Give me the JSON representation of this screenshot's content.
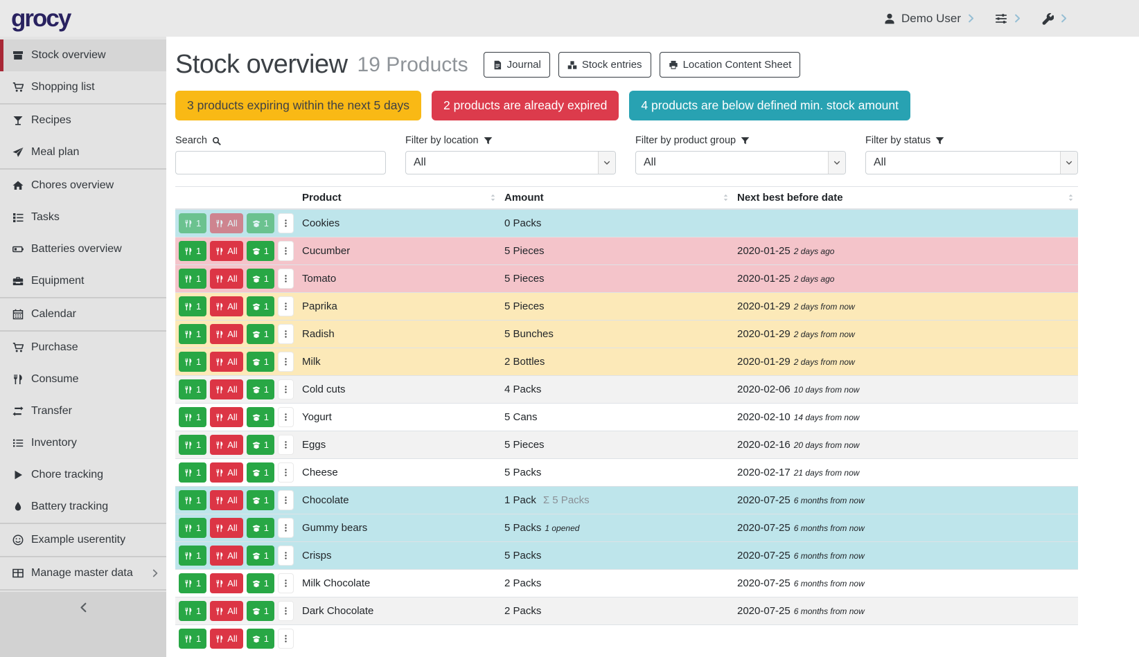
{
  "topbar": {
    "logo": "grocy",
    "user_label": "Demo User"
  },
  "sidebar": {
    "items": [
      {
        "label": "Stock overview",
        "icon": "box",
        "active": true
      },
      {
        "label": "Shopping list",
        "icon": "cart",
        "divider_after": true
      },
      {
        "label": "Recipes",
        "icon": "cocktail"
      },
      {
        "label": "Meal plan",
        "icon": "paper-plane",
        "divider_after": true
      },
      {
        "label": "Chores overview",
        "icon": "home"
      },
      {
        "label": "Tasks",
        "icon": "tasks"
      },
      {
        "label": "Batteries overview",
        "icon": "battery"
      },
      {
        "label": "Equipment",
        "icon": "toolbox",
        "divider_after": true
      },
      {
        "label": "Calendar",
        "icon": "calendar",
        "divider_after": true
      },
      {
        "label": "Purchase",
        "icon": "cart"
      },
      {
        "label": "Consume",
        "icon": "utensils"
      },
      {
        "label": "Transfer",
        "icon": "exchange"
      },
      {
        "label": "Inventory",
        "icon": "list"
      },
      {
        "label": "Chore tracking",
        "icon": "play"
      },
      {
        "label": "Battery tracking",
        "icon": "tint",
        "divider_after": true
      },
      {
        "label": "Example userentity",
        "icon": "smile",
        "divider_after": true
      },
      {
        "label": "Manage master data",
        "icon": "table",
        "divider_after": true,
        "has_chevron": true
      }
    ]
  },
  "page": {
    "title": "Stock overview",
    "subtitle": "19 Products",
    "buttons": [
      {
        "label": "Journal",
        "icon": "journal"
      },
      {
        "label": "Stock entries",
        "icon": "boxes"
      },
      {
        "label": "Location Content Sheet",
        "icon": "print"
      }
    ],
    "alerts": [
      {
        "text": "3 products expiring within the next 5 days",
        "bg": "#f9b915",
        "fg": "#3f4145"
      },
      {
        "text": "2 products are already expired",
        "bg": "#dc3b4c",
        "fg": "#ffffff"
      },
      {
        "text": "4 products are below defined min. stock amount",
        "bg": "#28a2b2",
        "fg": "#ffffff"
      }
    ]
  },
  "filters": {
    "search_label": "Search",
    "search_value": "",
    "selects": [
      {
        "label": "Filter by location",
        "value": "All"
      },
      {
        "label": "Filter by product group",
        "value": "All"
      },
      {
        "label": "Filter by status",
        "value": "All"
      }
    ]
  },
  "table": {
    "columns": [
      "Product",
      "Amount",
      "Next best before date"
    ],
    "row_actions": {
      "consume_one": "1",
      "consume_all": "All",
      "open_one": "1"
    },
    "rows": [
      {
        "product": "Cookies",
        "amount": "0 Packs",
        "date": "",
        "date_note": "",
        "status": "below-min",
        "disabled": true
      },
      {
        "product": "Cucumber",
        "amount": "5 Pieces",
        "date": "2020-01-25",
        "date_note": "2 days ago",
        "status": "expired"
      },
      {
        "product": "Tomato",
        "amount": "5 Pieces",
        "date": "2020-01-25",
        "date_note": "2 days ago",
        "status": "expired"
      },
      {
        "product": "Paprika",
        "amount": "5 Pieces",
        "date": "2020-01-29",
        "date_note": "2 days from now",
        "status": "expiring"
      },
      {
        "product": "Radish",
        "amount": "5 Bunches",
        "date": "2020-01-29",
        "date_note": "2 days from now",
        "status": "expiring"
      },
      {
        "product": "Milk",
        "amount": "2 Bottles",
        "date": "2020-01-29",
        "date_note": "2 days from now",
        "status": "expiring"
      },
      {
        "product": "Cold cuts",
        "amount": "4 Packs",
        "date": "2020-02-06",
        "date_note": "10 days from now",
        "status": "stripe"
      },
      {
        "product": "Yogurt",
        "amount": "5 Cans",
        "date": "2020-02-10",
        "date_note": "14 days from now",
        "status": "plain"
      },
      {
        "product": "Eggs",
        "amount": "5 Pieces",
        "date": "2020-02-16",
        "date_note": "20 days from now",
        "status": "stripe"
      },
      {
        "product": "Cheese",
        "amount": "5 Packs",
        "date": "2020-02-17",
        "date_note": "21 days from now",
        "status": "plain"
      },
      {
        "product": "Chocolate",
        "amount": "1 Pack",
        "sum_extra": "Σ 5 Packs",
        "date": "2020-07-25",
        "date_note": "6 months from now",
        "status": "below-min"
      },
      {
        "product": "Gummy bears",
        "amount": "5 Packs",
        "opened_extra": "1 opened",
        "date": "2020-07-25",
        "date_note": "6 months from now",
        "status": "below-min"
      },
      {
        "product": "Crisps",
        "amount": "5 Packs",
        "date": "2020-07-25",
        "date_note": "6 months from now",
        "status": "below-min"
      },
      {
        "product": "Milk Chocolate",
        "amount": "2 Packs",
        "date": "2020-07-25",
        "date_note": "6 months from now",
        "status": "plain"
      },
      {
        "product": "Dark Chocolate",
        "amount": "2 Packs",
        "date": "2020-07-25",
        "date_note": "6 months from now",
        "status": "stripe"
      },
      {
        "product": "",
        "amount": "",
        "date": "",
        "date_note": "",
        "status": "plain",
        "partial": true
      }
    ]
  },
  "colors": {
    "topbar_bg": "#e9e9e9",
    "sidebar_bg": "#e3e3e3",
    "sidebar_active_bg": "#d6d6d6",
    "sidebar_active_border": "#a82836",
    "logo": "#292260",
    "alert_yellow": "#f9b915",
    "alert_red": "#dc3b4c",
    "alert_teal": "#28a2b2",
    "row_below_min": "#bee5eb",
    "row_expired": "#f4c4ca",
    "row_expiring": "#fce9b8",
    "btn_green": "#28a745",
    "btn_red": "#dc3545"
  }
}
